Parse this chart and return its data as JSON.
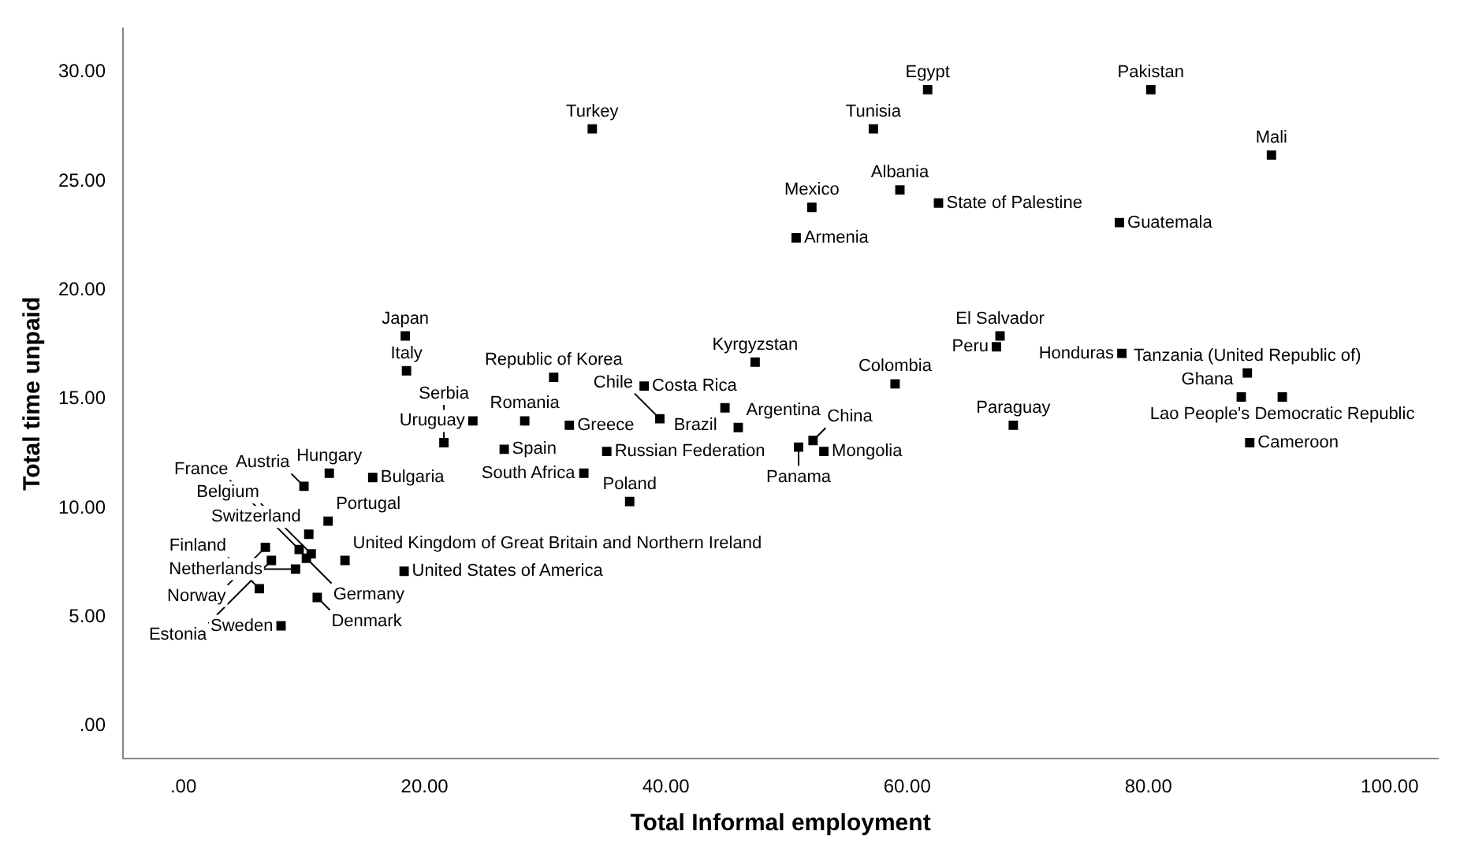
{
  "chart_data": {
    "type": "scatter",
    "xlabel": "Total Informal employment",
    "ylabel": "Total time unpaid",
    "xlim": [
      -5,
      104
    ],
    "ylim": [
      -1.5,
      32
    ],
    "xticks": [
      {
        "value": 0,
        "label": ".00"
      },
      {
        "value": 20,
        "label": "20.00"
      },
      {
        "value": 40,
        "label": "40.00"
      },
      {
        "value": 60,
        "label": "60.00"
      },
      {
        "value": 80,
        "label": "80.00"
      },
      {
        "value": 100,
        "label": "100.00"
      }
    ],
    "yticks": [
      {
        "value": 0,
        "label": ".00"
      },
      {
        "value": 5,
        "label": "5.00"
      },
      {
        "value": 10,
        "label": "10.00"
      },
      {
        "value": 15,
        "label": "15.00"
      },
      {
        "value": 20,
        "label": "20.00"
      },
      {
        "value": 25,
        "label": "25.00"
      },
      {
        "value": 30,
        "label": "30.00"
      }
    ],
    "grid": false,
    "legend": false,
    "marker": "square",
    "series": [
      {
        "color": "#000000",
        "x": [
          33.9,
          61.7,
          57.2,
          52.1,
          59.4,
          62.6,
          50.8,
          80.2,
          90.2,
          77.6,
          67.7,
          67.4,
          77.8,
          88.2,
          87.7,
          91.1,
          88.4,
          68.8,
          59.0,
          47.4,
          38.2,
          39.5,
          44.9,
          46.0,
          32.0,
          35.1,
          33.2,
          37.0,
          51.0,
          52.2,
          53.1,
          30.7,
          18.4,
          18.5,
          24.0,
          28.3,
          21.6,
          26.6,
          12.1,
          15.7,
          10.0,
          12.0,
          10.4,
          9.6,
          6.8,
          7.3,
          10.2,
          9.3,
          10.6,
          13.4,
          18.3,
          6.3,
          11.1,
          8.1
        ],
        "values": [
          27.4,
          29.2,
          27.4,
          23.8,
          24.6,
          24.0,
          22.4,
          29.2,
          26.2,
          23.1,
          17.9,
          17.4,
          17.1,
          16.2,
          15.1,
          15.1,
          13.0,
          13.8,
          15.7,
          16.7,
          15.6,
          14.1,
          14.6,
          13.7,
          13.8,
          12.6,
          11.6,
          10.3,
          12.8,
          13.1,
          12.6,
          16.0,
          17.9,
          16.3,
          14.0,
          14.0,
          13.0,
          12.7,
          11.6,
          11.4,
          11.0,
          9.4,
          8.8,
          8.1,
          8.2,
          7.6,
          7.7,
          7.2,
          7.9,
          7.6,
          7.1,
          6.3,
          5.9,
          4.6
        ]
      }
    ],
    "annotations": [
      {
        "text": "Turkey",
        "x": 33.9,
        "y": 27.4
      },
      {
        "text": "Egypt",
        "x": 61.7,
        "y": 29.2
      },
      {
        "text": "Tunisia",
        "x": 57.2,
        "y": 27.4
      },
      {
        "text": "Mexico",
        "x": 52.1,
        "y": 23.8
      },
      {
        "text": "Albania",
        "x": 59.4,
        "y": 24.6
      },
      {
        "text": "State of Palestine",
        "x": 62.6,
        "y": 24.0
      },
      {
        "text": "Armenia",
        "x": 50.8,
        "y": 22.4
      },
      {
        "text": "Pakistan",
        "x": 80.2,
        "y": 29.2
      },
      {
        "text": "Mali",
        "x": 90.2,
        "y": 26.2
      },
      {
        "text": "Guatemala",
        "x": 77.6,
        "y": 23.1
      },
      {
        "text": "El Salvador",
        "x": 67.7,
        "y": 17.9
      },
      {
        "text": "Peru",
        "x": 67.4,
        "y": 17.4
      },
      {
        "text": "Honduras",
        "x": 77.8,
        "y": 17.1
      },
      {
        "text": "Tanzania (United Republic of)",
        "x": 88.2,
        "y": 16.2
      },
      {
        "text": "Ghana",
        "x": 87.7,
        "y": 15.1
      },
      {
        "text": "Lao People's Democratic Republic",
        "x": 91.1,
        "y": 15.1
      },
      {
        "text": "Cameroon",
        "x": 88.4,
        "y": 13.0
      },
      {
        "text": "Paraguay",
        "x": 68.8,
        "y": 13.8
      },
      {
        "text": "Colombia",
        "x": 59.0,
        "y": 15.7
      },
      {
        "text": "Kyrgyzstan",
        "x": 47.4,
        "y": 16.7
      },
      {
        "text": "Costa Rica",
        "x": 38.2,
        "y": 15.6
      },
      {
        "text": "Chile",
        "x": 39.5,
        "y": 14.1
      },
      {
        "text": "Brazil",
        "x": 44.9,
        "y": 14.6
      },
      {
        "text": "Argentina",
        "x": 46.0,
        "y": 13.7
      },
      {
        "text": "Greece",
        "x": 32.0,
        "y": 13.8
      },
      {
        "text": "Russian Federation",
        "x": 35.1,
        "y": 12.6
      },
      {
        "text": "South Africa",
        "x": 33.2,
        "y": 11.6
      },
      {
        "text": "Poland",
        "x": 37.0,
        "y": 10.3
      },
      {
        "text": "Panama",
        "x": 51.0,
        "y": 12.8
      },
      {
        "text": "China",
        "x": 52.2,
        "y": 13.1
      },
      {
        "text": "Mongolia",
        "x": 53.1,
        "y": 12.6
      },
      {
        "text": "Republic of Korea",
        "x": 30.7,
        "y": 16.0
      },
      {
        "text": "Japan",
        "x": 18.4,
        "y": 17.9
      },
      {
        "text": "Italy",
        "x": 18.5,
        "y": 16.3
      },
      {
        "text": "Uruguay",
        "x": 24.0,
        "y": 14.0
      },
      {
        "text": "Romania",
        "x": 28.3,
        "y": 14.0
      },
      {
        "text": "Serbia",
        "x": 21.6,
        "y": 13.0
      },
      {
        "text": "Spain",
        "x": 26.6,
        "y": 12.7
      },
      {
        "text": "Hungary",
        "x": 12.1,
        "y": 11.6
      },
      {
        "text": "Bulgaria",
        "x": 15.7,
        "y": 11.4
      },
      {
        "text": "Austria",
        "x": 10.0,
        "y": 11.0
      },
      {
        "text": "Portugal",
        "x": 12.0,
        "y": 9.4
      },
      {
        "text": "Switzerland",
        "x": 10.4,
        "y": 8.8
      },
      {
        "text": "France",
        "x": 9.6,
        "y": 8.1
      },
      {
        "text": "Norway",
        "x": 6.8,
        "y": 8.2
      },
      {
        "text": "Estonia",
        "x": 7.3,
        "y": 7.6
      },
      {
        "text": "Germany",
        "x": 10.2,
        "y": 7.7
      },
      {
        "text": "Netherlands",
        "x": 9.3,
        "y": 7.2
      },
      {
        "text": "Belgium",
        "x": 10.6,
        "y": 7.9
      },
      {
        "text": "United Kingdom of Great Britain and Northern Ireland",
        "x": 13.4,
        "y": 7.6
      },
      {
        "text": "United States of America",
        "x": 18.3,
        "y": 7.1
      },
      {
        "text": "Finland",
        "x": 6.3,
        "y": 6.3
      },
      {
        "text": "Denmark",
        "x": 11.1,
        "y": 5.9
      },
      {
        "text": "Sweden",
        "x": 8.1,
        "y": 4.6
      }
    ]
  }
}
